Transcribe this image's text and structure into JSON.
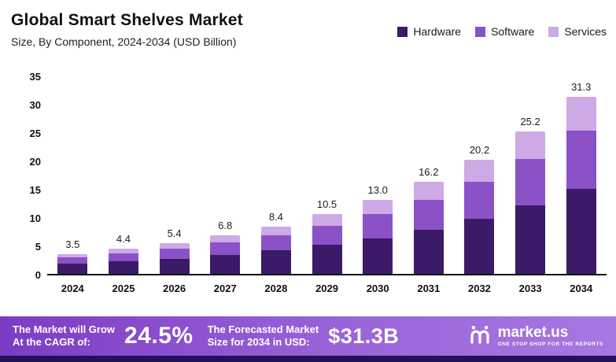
{
  "header": {
    "title": "Global Smart Shelves Market",
    "subtitle": "Size, By Component, 2024-2034 (USD Billion)"
  },
  "chart_data": {
    "type": "bar",
    "stacked": true,
    "title": "Global Smart Shelves Market",
    "subtitle": "Size, By Component, 2024-2034 (USD Billion)",
    "categories": [
      "2024",
      "2025",
      "2026",
      "2027",
      "2028",
      "2029",
      "2030",
      "2031",
      "2032",
      "2033",
      "2034"
    ],
    "series": [
      {
        "name": "Hardware",
        "color": "#3b1a68",
        "values": [
          1.8,
          2.2,
          2.7,
          3.3,
          4.1,
          5.1,
          6.3,
          7.8,
          9.7,
          12.1,
          15.0
        ]
      },
      {
        "name": "Software",
        "color": "#8b51c6",
        "values": [
          1.1,
          1.4,
          1.7,
          2.2,
          2.7,
          3.4,
          4.2,
          5.3,
          6.6,
          8.2,
          10.3
        ]
      },
      {
        "name": "Services",
        "color": "#cda9e6",
        "values": [
          0.6,
          0.8,
          1.0,
          1.3,
          1.6,
          2.0,
          2.5,
          3.1,
          3.9,
          4.9,
          6.0
        ]
      }
    ],
    "totals_labels": [
      "3.5",
      "4.4",
      "5.4",
      "6.8",
      "8.4",
      "10.5",
      "13.0",
      "16.2",
      "20.2",
      "25.2",
      "31.3"
    ],
    "ylim": [
      0,
      35
    ],
    "yticks": [
      0,
      5,
      10,
      15,
      20,
      25,
      30,
      35
    ],
    "grid": false,
    "legend_position": "top-right",
    "xlabel": "",
    "ylabel": ""
  },
  "banner": {
    "cagr_label1": "The Market will Grow",
    "cagr_label2": "At the CAGR of:",
    "cagr_value": "24.5%",
    "forecast_label1": "The Forecasted Market",
    "forecast_label2": "Size for 2034 in USD:",
    "forecast_value": "$31.3B",
    "brand": "market.us",
    "brand_tagline": "ONE STOP SHOP FOR THE REPORTS"
  }
}
